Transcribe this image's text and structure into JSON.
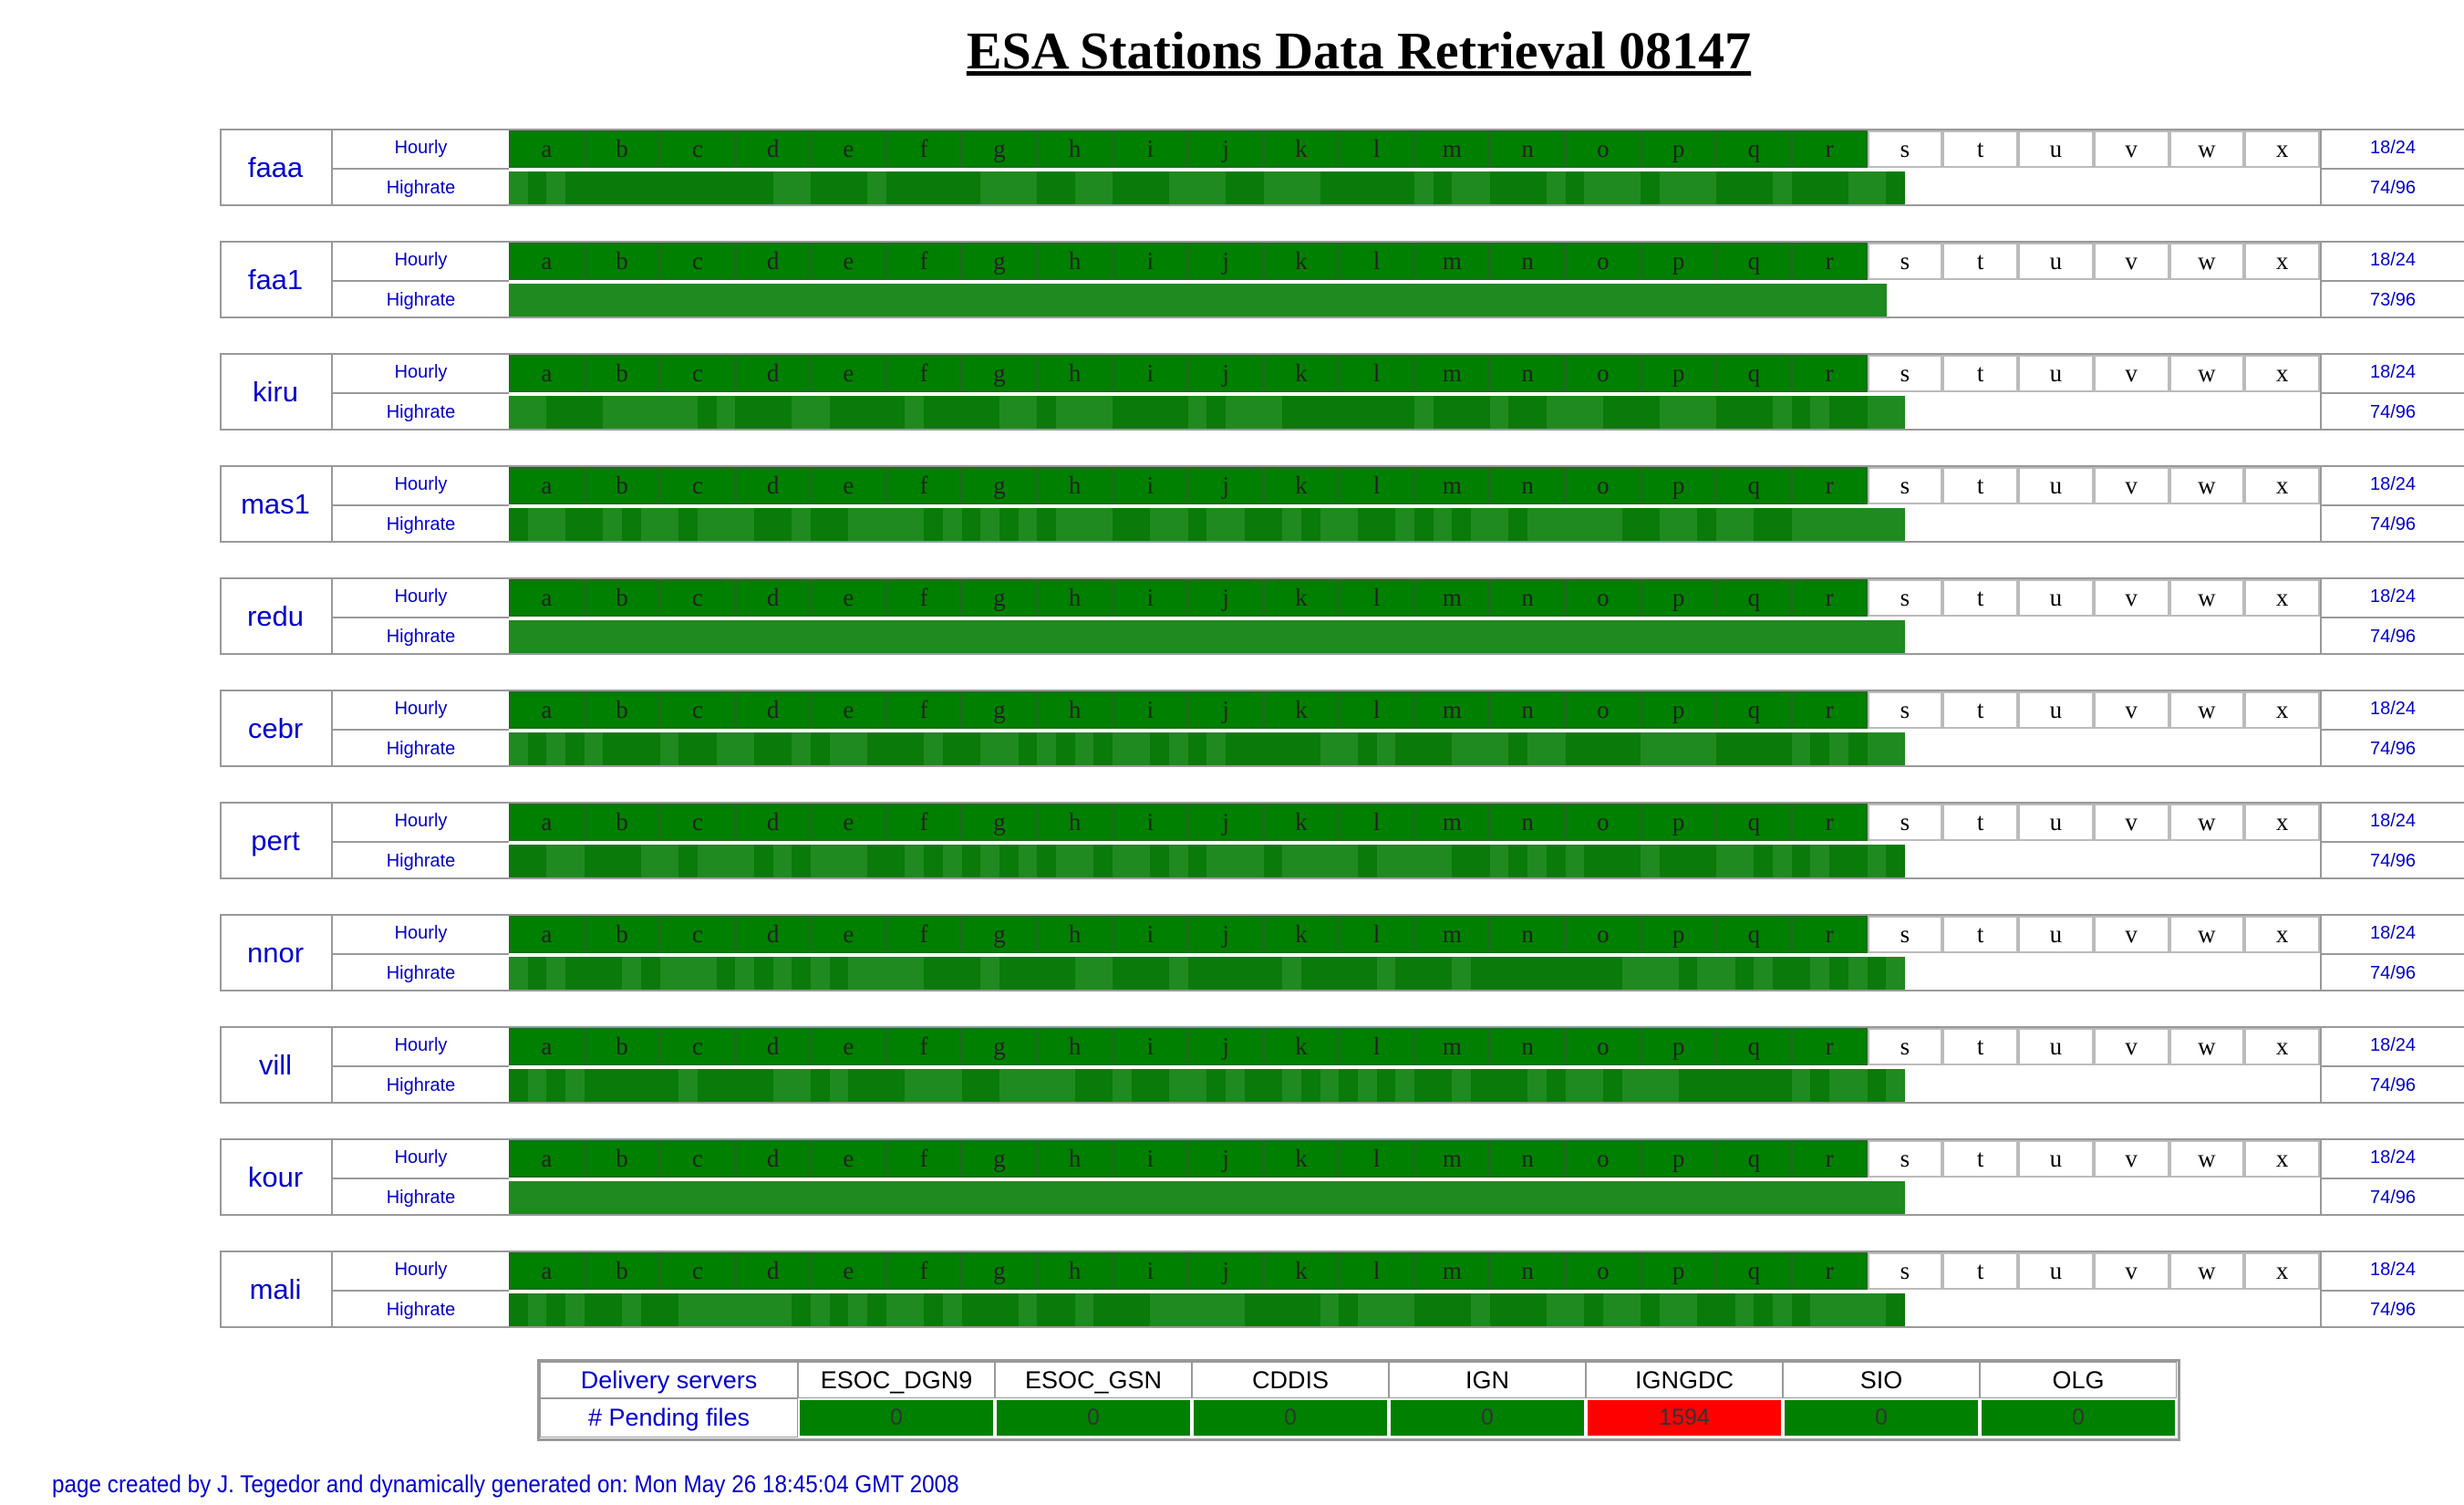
{
  "page_title": "ESA Stations Data Retrieval 08147",
  "row_labels": {
    "hourly": "Hourly",
    "highrate": "Highrate"
  },
  "hour_letters": [
    "a",
    "b",
    "c",
    "d",
    "e",
    "f",
    "g",
    "h",
    "i",
    "j",
    "k",
    "l",
    "m",
    "n",
    "o",
    "p",
    "q",
    "r",
    "s",
    "t",
    "u",
    "v",
    "w",
    "x"
  ],
  "stations": [
    {
      "name": "faaa",
      "hourly_count": "18/24",
      "highrate_count": "74/96"
    },
    {
      "name": "faa1",
      "hourly_count": "18/24",
      "highrate_count": "73/96"
    },
    {
      "name": "kiru",
      "hourly_count": "18/24",
      "highrate_count": "74/96"
    },
    {
      "name": "mas1",
      "hourly_count": "18/24",
      "highrate_count": "74/96"
    },
    {
      "name": "redu",
      "hourly_count": "18/24",
      "highrate_count": "74/96"
    },
    {
      "name": "cebr",
      "hourly_count": "18/24",
      "highrate_count": "74/96"
    },
    {
      "name": "pert",
      "hourly_count": "18/24",
      "highrate_count": "74/96"
    },
    {
      "name": "nnor",
      "hourly_count": "18/24",
      "highrate_count": "74/96"
    },
    {
      "name": "vill",
      "hourly_count": "18/24",
      "highrate_count": "74/96"
    },
    {
      "name": "kour",
      "hourly_count": "18/24",
      "highrate_count": "74/96"
    },
    {
      "name": "mali",
      "hourly_count": "18/24",
      "highrate_count": "74/96"
    }
  ],
  "delivery": {
    "header_label": "Delivery servers",
    "pending_label": "# Pending files",
    "servers": [
      {
        "name": "ESOC_DGN9",
        "pending": 0,
        "color": "#008000"
      },
      {
        "name": "ESOC_GSN",
        "pending": 0,
        "color": "#008000"
      },
      {
        "name": "CDDIS",
        "pending": 0,
        "color": "#008000"
      },
      {
        "name": "IGN",
        "pending": 0,
        "color": "#008000"
      },
      {
        "name": "IGNGDC",
        "pending": 1594,
        "color": "#ff0000"
      },
      {
        "name": "SIO",
        "pending": 0,
        "color": "#008000"
      },
      {
        "name": "OLG",
        "pending": 0,
        "color": "#008000"
      }
    ]
  },
  "footer": "page created by J. Tegedor and dynamically generated on: Mon May 26 18:45:04 GMT 2008"
}
